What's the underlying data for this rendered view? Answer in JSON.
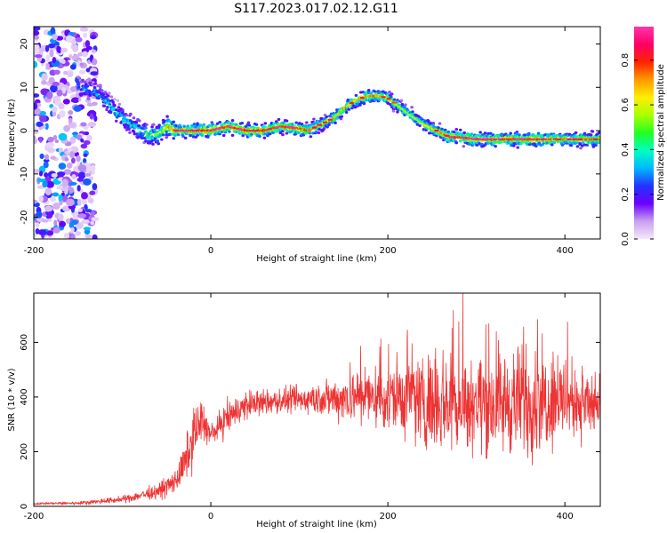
{
  "title": "S117.2023.017.02.12.G11",
  "chart_data": [
    {
      "type": "heatmap",
      "xlabel": "Height of straight line (km)",
      "ylabel": "Frequency (Hz)",
      "xlim": [
        -200,
        440
      ],
      "ylim": [
        -25,
        24
      ],
      "xticks": [
        -200,
        0,
        200,
        400
      ],
      "yticks": [
        -20,
        -10,
        0,
        10,
        20
      ],
      "colorbar": {
        "label": "Normalized spectral amplitude",
        "range": [
          0,
          0.95
        ],
        "ticks": [
          0.0,
          0.2,
          0.4,
          0.6,
          0.8
        ],
        "tick_labels": [
          "0.0",
          "0.2",
          "0.4",
          "0.6",
          "0.8"
        ],
        "colors": [
          "#f4e8fb",
          "#c9a0f0",
          "#6a00ff",
          "#2233ff",
          "#00b8ff",
          "#00ffc0",
          "#22ff22",
          "#aaff00",
          "#ffee00",
          "#ff9900",
          "#ff2200",
          "#ff0066",
          "#ff33aa"
        ]
      },
      "ridge": {
        "x": [
          -150,
          -130,
          -110,
          -95,
          -80,
          -70,
          -60,
          -50,
          -40,
          -20,
          0,
          20,
          40,
          60,
          80,
          100,
          110,
          120,
          130,
          140,
          150,
          160,
          170,
          180,
          190,
          200,
          210,
          220,
          230,
          240,
          250,
          260,
          270,
          280,
          300,
          320,
          340,
          360,
          380,
          400,
          420,
          440
        ],
        "y": [
          10,
          9,
          5,
          2,
          0,
          -1,
          -1,
          1,
          0,
          0,
          0,
          1,
          0,
          0,
          1,
          0.5,
          0,
          1,
          2,
          3,
          5,
          6.5,
          7.5,
          8,
          8,
          7.5,
          6,
          4.5,
          3,
          1.5,
          0.5,
          -0.5,
          -1.5,
          -1.5,
          -2,
          -2,
          -2,
          -2,
          -2,
          -2,
          -2,
          -2
        ],
        "amplitude": [
          0.35,
          0.4,
          0.45,
          0.45,
          0.5,
          0.55,
          0.6,
          0.7,
          0.8,
          0.9,
          0.92,
          0.85,
          0.9,
          0.88,
          0.85,
          0.82,
          0.8,
          0.75,
          0.7,
          0.7,
          0.7,
          0.72,
          0.75,
          0.78,
          0.75,
          0.7,
          0.65,
          0.6,
          0.6,
          0.65,
          0.7,
          0.75,
          0.8,
          0.85,
          0.85,
          0.82,
          0.85,
          0.85,
          0.8,
          0.8,
          0.78,
          0.75
        ]
      },
      "noise_region_x": [
        -200,
        -130
      ]
    },
    {
      "type": "line",
      "xlabel": "Height of straight line (km)",
      "ylabel": "SNR (10 * v/v)",
      "xlim": [
        -200,
        440
      ],
      "ylim": [
        0,
        780
      ],
      "xticks": [
        -200,
        0,
        200,
        400
      ],
      "yticks": [
        0,
        200,
        400,
        600
      ],
      "line_color": "#ee3333",
      "series": [
        {
          "envelope_x": [
            -200,
            -150,
            -120,
            -100,
            -60,
            -40,
            -30,
            -20,
            -10,
            0,
            20,
            40,
            60,
            80,
            100,
            120,
            140,
            160,
            180,
            200,
            220,
            240,
            260,
            280,
            300,
            320,
            340,
            360,
            380,
            400,
            420,
            440
          ],
          "mean": [
            10,
            12,
            20,
            25,
            55,
            90,
            150,
            260,
            320,
            260,
            330,
            370,
            380,
            385,
            390,
            395,
            395,
            400,
            400,
            400,
            395,
            390,
            385,
            380,
            380,
            375,
            380,
            385,
            390,
            390,
            380,
            350
          ],
          "spread": [
            6,
            8,
            15,
            18,
            40,
            70,
            110,
            150,
            120,
            60,
            90,
            80,
            70,
            70,
            75,
            90,
            110,
            140,
            160,
            200,
            230,
            250,
            270,
            260,
            270,
            280,
            290,
            300,
            260,
            220,
            200,
            150
          ]
        }
      ]
    }
  ]
}
